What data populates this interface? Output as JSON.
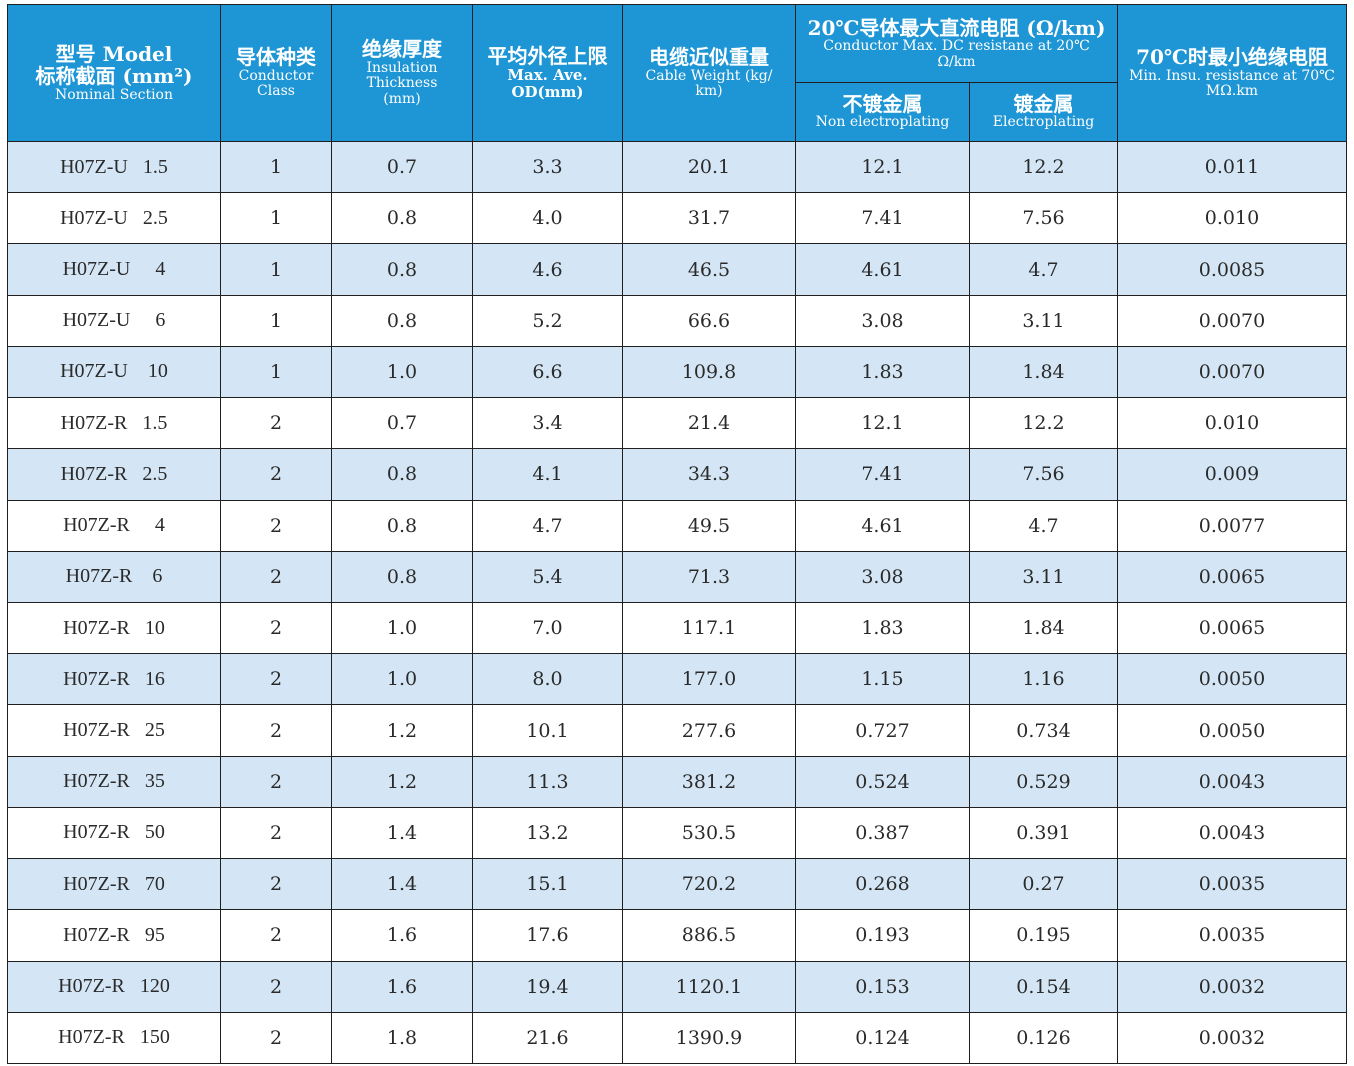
{
  "headers": {
    "model": {
      "cn": "型号 Model",
      "cn2": "标称截面 (mm²)",
      "en": "Nominal Section"
    },
    "class": {
      "cn": "导体种类",
      "en1": "Conductor",
      "en2": "Class"
    },
    "insulation": {
      "cn": "绝缘厚度",
      "en1": "Insulation",
      "en2": "Thickness",
      "en3": "(mm)"
    },
    "od": {
      "cn": "平均外径上限",
      "en1": "Max. Ave.",
      "en2": "OD(mm)"
    },
    "weight": {
      "cn": "电缆近似重量",
      "en1": "Cable  Weight (kg/",
      "en2": "km)"
    },
    "resistance": {
      "cn": "20℃导体最大直流电阻 (Ω/km)",
      "en1": "Conductor Max. DC resistane at 20℃",
      "en2": "Ω/km"
    },
    "non_plating": {
      "cn": "不镀金属",
      "en": "Non electroplating"
    },
    "plating": {
      "cn": "镀金属",
      "en": "Electroplating"
    },
    "insu_res": {
      "cn": "70℃时最小绝缘电阻",
      "en1": "Min. Insu. resistance at 70℃",
      "en2": "MΩ.km"
    }
  },
  "rows": [
    [
      "H07Z-U   1.5",
      "1",
      "0.7",
      "3.3",
      "20.1",
      "12.1",
      "12.2",
      "0.011"
    ],
    [
      "H07Z-U   2.5",
      "1",
      "0.8",
      "4.0",
      "31.7",
      "7.41",
      "7.56",
      "0.010"
    ],
    [
      "H07Z-U     4",
      "1",
      "0.8",
      "4.6",
      "46.5",
      "4.61",
      "4.7",
      "0.0085"
    ],
    [
      "H07Z-U     6",
      "1",
      "0.8",
      "5.2",
      "66.6",
      "3.08",
      "3.11",
      "0.0070"
    ],
    [
      "H07Z-U    10",
      "1",
      "1.0",
      "6.6",
      "109.8",
      "1.83",
      "1.84",
      "0.0070"
    ],
    [
      "H07Z-R   1.5",
      "2",
      "0.7",
      "3.4",
      "21.4",
      "12.1",
      "12.2",
      "0.010"
    ],
    [
      "H07Z-R   2.5",
      "2",
      "0.8",
      "4.1",
      "34.3",
      "7.41",
      "7.56",
      "0.009"
    ],
    [
      "H07Z-R     4",
      "2",
      "0.8",
      "4.7",
      "49.5",
      "4.61",
      "4.7",
      "0.0077"
    ],
    [
      "H07Z-R    6",
      "2",
      "0.8",
      "5.4",
      "71.3",
      "3.08",
      "3.11",
      "0.0065"
    ],
    [
      "H07Z-R   10",
      "2",
      "1.0",
      "7.0",
      "117.1",
      "1.83",
      "1.84",
      "0.0065"
    ],
    [
      "H07Z-R   16",
      "2",
      "1.0",
      "8.0",
      "177.0",
      "1.15",
      "1.16",
      "0.0050"
    ],
    [
      "H07Z-R   25",
      "2",
      "1.2",
      "10.1",
      "277.6",
      "0.727",
      "0.734",
      "0.0050"
    ],
    [
      "H07Z-R   35",
      "2",
      "1.2",
      "11.3",
      "381.2",
      "0.524",
      "0.529",
      "0.0043"
    ],
    [
      "H07Z-R   50",
      "2",
      "1.4",
      "13.2",
      "530.5",
      "0.387",
      "0.391",
      "0.0043"
    ],
    [
      "H07Z-R   70",
      "2",
      "1.4",
      "15.1",
      "720.2",
      "0.268",
      "0.27",
      "0.0035"
    ],
    [
      "H07Z-R   95",
      "2",
      "1.6",
      "17.6",
      "886.5",
      "0.193",
      "0.195",
      "0.0035"
    ],
    [
      "H07Z-R   120",
      "2",
      "1.6",
      "19.4",
      "1120.1",
      "0.153",
      "0.154",
      "0.0032"
    ],
    [
      "H07Z-R   150",
      "2",
      "1.8",
      "21.6",
      "1390.9",
      "0.124",
      "0.126",
      "0.0032"
    ]
  ]
}
